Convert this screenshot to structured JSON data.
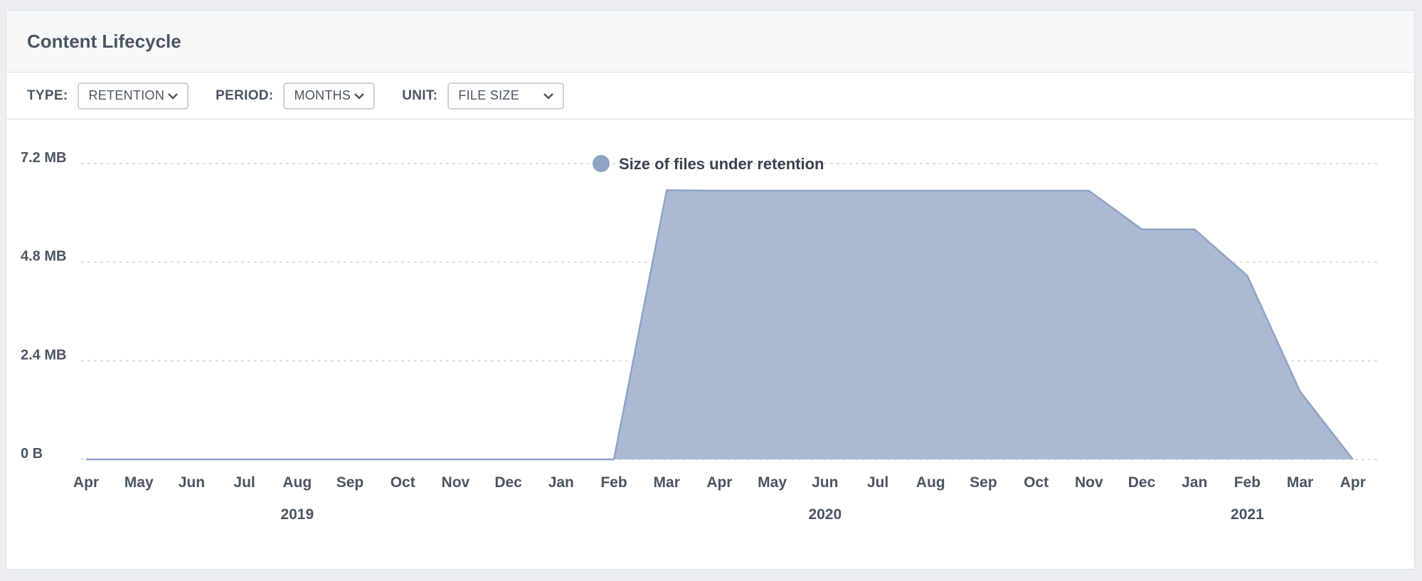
{
  "panel": {
    "title": "Content Lifecycle"
  },
  "filters": {
    "type": {
      "label": "TYPE:",
      "value": "RETENTION"
    },
    "period": {
      "label": "PERIOD:",
      "value": "MONTHS"
    },
    "unit": {
      "label": "UNIT:",
      "value": "FILE SIZE"
    }
  },
  "colors": {
    "area": "#abb9d3",
    "line": "#8fa3c6",
    "legend_dot": "#8fa3c6",
    "grid": "#d5dae2"
  },
  "chart_data": {
    "type": "area",
    "title": "",
    "xlabel": "",
    "ylabel": "",
    "ylim": [
      0,
      7.2
    ],
    "y_unit": "MB",
    "y_ticks": [
      {
        "value": 0,
        "label": "0 B"
      },
      {
        "value": 2.4,
        "label": "2.4 MB"
      },
      {
        "value": 4.8,
        "label": "4.8 MB"
      },
      {
        "value": 7.2,
        "label": "7.2 MB"
      }
    ],
    "categories": [
      "Apr",
      "May",
      "Jun",
      "Jul",
      "Aug",
      "Sep",
      "Oct",
      "Nov",
      "Dec",
      "Jan",
      "Feb",
      "Mar",
      "Apr",
      "May",
      "Jun",
      "Jul",
      "Aug",
      "Sep",
      "Oct",
      "Nov",
      "Dec",
      "Jan",
      "Feb",
      "Mar",
      "Apr"
    ],
    "years": [
      {
        "label": "2019",
        "month_index": 4
      },
      {
        "label": "2020",
        "month_index": 14
      },
      {
        "label": "2021",
        "month_index": 22
      }
    ],
    "grid": true,
    "legend_position": "top-center",
    "series": [
      {
        "name": "Size of files under retention",
        "values": [
          0,
          0,
          0,
          0,
          0,
          0,
          0,
          0,
          0,
          0,
          0,
          6.55,
          6.54,
          6.54,
          6.54,
          6.54,
          6.54,
          6.54,
          6.54,
          6.54,
          5.6,
          5.6,
          4.47,
          1.65,
          0
        ]
      }
    ]
  }
}
